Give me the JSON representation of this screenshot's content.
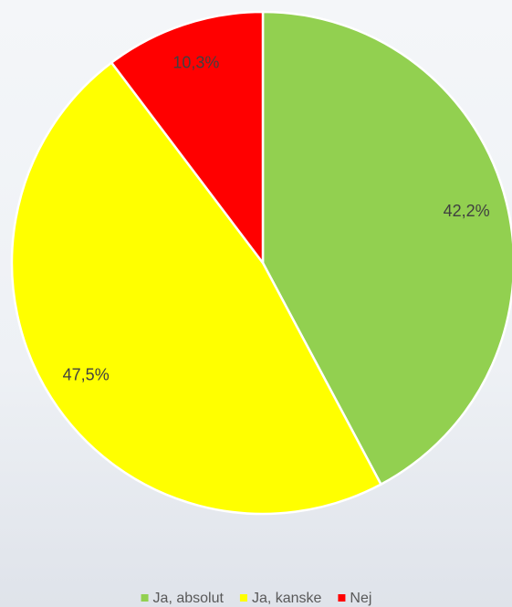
{
  "chart_data": {
    "type": "pie",
    "categories": [
      "Ja, absolut",
      "Ja, kanske",
      "Nej"
    ],
    "values": [
      42.2,
      47.5,
      10.3
    ],
    "value_labels": [
      "42,2%",
      "47,5%",
      "10,3%"
    ],
    "colors": [
      "#92d050",
      "#ffff00",
      "#ff0000"
    ],
    "legend": "bottom"
  }
}
